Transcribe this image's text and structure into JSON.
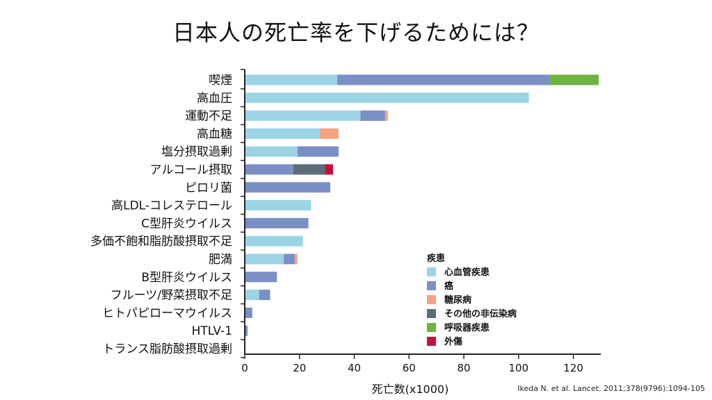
{
  "page": {
    "title": "日本人の死亡率を下げるためには？",
    "citation": "Ikeda N. et al. Lancet. 2011;378(9796):1094-105"
  },
  "chart_data": {
    "type": "bar",
    "orientation": "horizontal",
    "stacked": true,
    "title": "日本人の死亡率を下げるためには？",
    "xlabel": "死亡数(x1000)",
    "ylabel": "",
    "xlim": [
      0,
      130
    ],
    "xticks": [
      0,
      20,
      40,
      60,
      80,
      100,
      120
    ],
    "categories": [
      "喫煙",
      "高血圧",
      "運動不足",
      "高血糖",
      "塩分摂取過剰",
      "アルコール摂取",
      "ピロリ菌",
      "高LDL-コレステロール",
      "C型肝炎ウイルス",
      "多価不飽和脂肪酸摂取不足",
      "肥満",
      "B型肝炎ウイルス",
      "フルーツ/野菜摂取不足",
      "ヒトパピローマウイルス",
      "HTLV-1",
      "トランス脂肪酸摂取過剰"
    ],
    "legend_title": "疾患",
    "legend_position": "right",
    "series": [
      {
        "name": "心血管疾患",
        "color": "#9dd4e5",
        "values": [
          33.5,
          103.5,
          42,
          27,
          19,
          0,
          0,
          24,
          0,
          21,
          14,
          0,
          5,
          0,
          0,
          0
        ]
      },
      {
        "name": "癌",
        "color": "#7b8fc7",
        "values": [
          77.5,
          0,
          9,
          0,
          15,
          17.5,
          31,
          0,
          23,
          0,
          4,
          11.5,
          4,
          2.5,
          0.8,
          0
        ]
      },
      {
        "name": "糖尿病",
        "color": "#f4a482",
        "values": [
          0,
          0,
          1,
          7,
          0,
          0,
          0,
          0,
          0,
          0,
          1,
          0,
          0,
          0,
          0,
          0
        ]
      },
      {
        "name": "その他の非伝染病",
        "color": "#5a6e78",
        "values": [
          0,
          0,
          0,
          0,
          0,
          11.5,
          0,
          0,
          0,
          0,
          0,
          0,
          0,
          0,
          0,
          0
        ]
      },
      {
        "name": "呼吸器疾患",
        "color": "#6db33f",
        "values": [
          18,
          0,
          0,
          0,
          0,
          0,
          0,
          0,
          0,
          0,
          0,
          0,
          0,
          0,
          0,
          0
        ]
      },
      {
        "name": "外傷",
        "color": "#c0143c",
        "values": [
          0,
          0,
          0,
          0,
          0,
          3,
          0,
          0,
          0,
          0,
          0,
          0,
          0,
          0,
          0,
          0
        ]
      }
    ]
  }
}
